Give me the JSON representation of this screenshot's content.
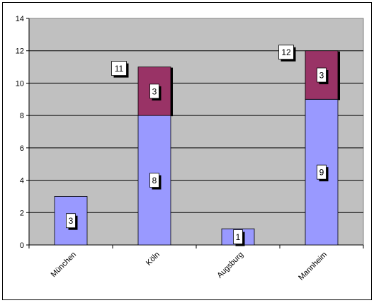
{
  "chart_data": {
    "type": "bar",
    "stacked": true,
    "categories": [
      "München",
      "Köln",
      "Augsburg",
      "Mannheim"
    ],
    "series": [
      {
        "values": [
          3,
          8,
          1,
          9
        ],
        "color": "#9999ff"
      },
      {
        "values": [
          0,
          3,
          0,
          3
        ],
        "color": "#993366"
      }
    ],
    "totals": [
      null,
      11,
      null,
      12
    ],
    "ylim": [
      0,
      14
    ],
    "yticks": [
      0,
      2,
      4,
      6,
      8,
      10,
      12,
      14
    ],
    "grid": true,
    "legend": "none",
    "plot_background": "#c0c0c0"
  }
}
